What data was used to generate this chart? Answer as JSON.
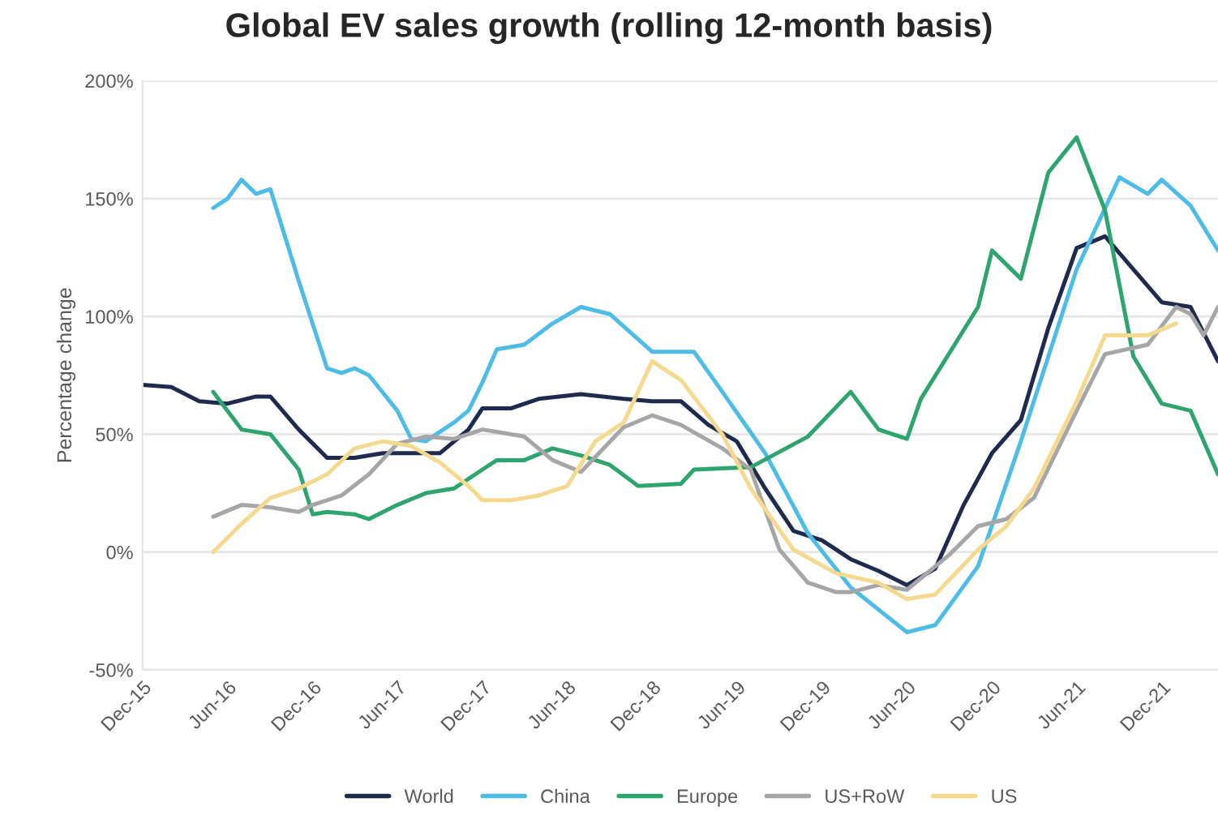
{
  "chart_data": {
    "type": "line",
    "title": "Global EV sales growth (rolling 12-month basis)",
    "ylabel": "Percentage change",
    "xlim": [
      "2015-12",
      "2022-04"
    ],
    "xticks": [
      {
        "value": "2015-12",
        "label": "Dec-15"
      },
      {
        "value": "2016-06",
        "label": "Jun-16"
      },
      {
        "value": "2016-12",
        "label": "Dec-16"
      },
      {
        "value": "2017-06",
        "label": "Jun-17"
      },
      {
        "value": "2017-12",
        "label": "Dec-17"
      },
      {
        "value": "2018-06",
        "label": "Jun-18"
      },
      {
        "value": "2018-12",
        "label": "Dec-18"
      },
      {
        "value": "2019-06",
        "label": "Jun-19"
      },
      {
        "value": "2019-12",
        "label": "Dec-19"
      },
      {
        "value": "2020-06",
        "label": "Jun-20"
      },
      {
        "value": "2020-12",
        "label": "Dec-20"
      },
      {
        "value": "2021-06",
        "label": "Jun-21"
      },
      {
        "value": "2021-12",
        "label": "Dec-21"
      }
    ],
    "ylim": [
      -50,
      200
    ],
    "yticks": [
      {
        "value": -50,
        "label": "-50%"
      },
      {
        "value": 0,
        "label": "0%"
      },
      {
        "value": 50,
        "label": "50%"
      },
      {
        "value": 100,
        "label": "100%"
      },
      {
        "value": 150,
        "label": "150%"
      },
      {
        "value": 200,
        "label": "200%"
      }
    ],
    "grid": "y",
    "legend": "bottom",
    "line_style": "solid",
    "series": [
      {
        "name": "World",
        "color": "#1f2a4f",
        "x": [
          "2015-12",
          "2016-02",
          "2016-04",
          "2016-06",
          "2016-08",
          "2016-09",
          "2016-11",
          "2017-01",
          "2017-03",
          "2017-05",
          "2017-07",
          "2017-09",
          "2017-11",
          "2017-12",
          "2018-02",
          "2018-04",
          "2018-07",
          "2018-10",
          "2018-12",
          "2019-02",
          "2019-04",
          "2019-06",
          "2019-08",
          "2019-10",
          "2019-12",
          "2020-02",
          "2020-04",
          "2020-06",
          "2020-08",
          "2020-10",
          "2020-12",
          "2021-02",
          "2021-04",
          "2021-06",
          "2021-08",
          "2021-10",
          "2021-12",
          "2022-02",
          "2022-04"
        ],
        "values": [
          71,
          70,
          64,
          63,
          66,
          66,
          52,
          40,
          40,
          42,
          42,
          42,
          52,
          61,
          61,
          65,
          67,
          65,
          64,
          64,
          54,
          47,
          27,
          9,
          5,
          -3,
          -8,
          -14,
          -7,
          20,
          42,
          56,
          95,
          129,
          134,
          120,
          106,
          104,
          81
        ]
      },
      {
        "name": "China",
        "color": "#4dbde8",
        "x": [
          "2016-05",
          "2016-06",
          "2016-07",
          "2016-08",
          "2016-09",
          "2016-11",
          "2017-01",
          "2017-02",
          "2017-03",
          "2017-04",
          "2017-06",
          "2017-07",
          "2017-08",
          "2017-10",
          "2017-11",
          "2017-12",
          "2018-01",
          "2018-03",
          "2018-05",
          "2018-07",
          "2018-09",
          "2018-12",
          "2019-03",
          "2019-05",
          "2019-08",
          "2019-11",
          "2020-02",
          "2020-06",
          "2020-08",
          "2020-11",
          "2021-02",
          "2021-06",
          "2021-09",
          "2021-11",
          "2021-12",
          "2022-02",
          "2022-04"
        ],
        "values": [
          146,
          150,
          158,
          152,
          154,
          115,
          78,
          76,
          78,
          75,
          60,
          48,
          47,
          55,
          60,
          72,
          86,
          88,
          97,
          104,
          101,
          85,
          85,
          68,
          42,
          8,
          -15,
          -34,
          -31,
          -6,
          47,
          120,
          159,
          152,
          158,
          147,
          128
        ]
      },
      {
        "name": "Europe",
        "color": "#2ea46f",
        "x": [
          "2016-05",
          "2016-07",
          "2016-09",
          "2016-11",
          "2016-12",
          "2017-01",
          "2017-03",
          "2017-04",
          "2017-06",
          "2017-08",
          "2017-10",
          "2017-12",
          "2018-01",
          "2018-03",
          "2018-05",
          "2018-07",
          "2018-09",
          "2018-11",
          "2019-02",
          "2019-03",
          "2019-07",
          "2019-11",
          "2020-02",
          "2020-04",
          "2020-06",
          "2020-07",
          "2020-11",
          "2020-12",
          "2021-02",
          "2021-04",
          "2021-06",
          "2021-08",
          "2021-10",
          "2021-12",
          "2022-02",
          "2022-04"
        ],
        "values": [
          68,
          52,
          50,
          35,
          16,
          17,
          16,
          14,
          20,
          25,
          27,
          35,
          39,
          39,
          44,
          41,
          37,
          28,
          29,
          35,
          36,
          49,
          68,
          52,
          48,
          65,
          104,
          128,
          116,
          161,
          176,
          145,
          83,
          63,
          60,
          33
        ]
      },
      {
        "name": "US+RoW",
        "color": "#a6a6a6",
        "x": [
          "2016-05",
          "2016-07",
          "2016-09",
          "2016-11",
          "2016-12",
          "2017-02",
          "2017-04",
          "2017-06",
          "2017-08",
          "2017-10",
          "2017-12",
          "2018-01",
          "2018-03",
          "2018-05",
          "2018-07",
          "2018-10",
          "2018-12",
          "2019-02",
          "2019-05",
          "2019-07",
          "2019-09",
          "2019-11",
          "2020-01",
          "2020-02",
          "2020-04",
          "2020-06",
          "2020-09",
          "2020-11",
          "2021-01",
          "2021-03",
          "2021-06",
          "2021-08",
          "2021-11",
          "2022-01",
          "2022-02",
          "2022-03",
          "2022-04"
        ],
        "values": [
          15,
          20,
          19,
          17,
          20,
          24,
          33,
          46,
          49,
          48,
          52,
          51,
          49,
          39,
          34,
          53,
          58,
          54,
          44,
          35,
          1,
          -13,
          -17,
          -17,
          -14,
          -16,
          -1,
          11,
          14,
          23,
          60,
          84,
          88,
          104,
          101,
          92,
          104
        ]
      },
      {
        "name": "US",
        "color": "#f5d98f",
        "x": [
          "2016-05",
          "2016-07",
          "2016-09",
          "2016-11",
          "2017-01",
          "2017-03",
          "2017-05",
          "2017-07",
          "2017-09",
          "2017-11",
          "2017-12",
          "2018-02",
          "2018-04",
          "2018-06",
          "2018-08",
          "2018-10",
          "2018-12",
          "2019-02",
          "2019-05",
          "2019-07",
          "2019-10",
          "2020-01",
          "2020-04",
          "2020-06",
          "2020-08",
          "2020-11",
          "2021-01",
          "2021-03",
          "2021-06",
          "2021-08",
          "2021-11",
          "2022-01"
        ],
        "values": [
          0,
          12,
          23,
          27,
          33,
          44,
          47,
          45,
          38,
          28,
          22,
          22,
          24,
          28,
          47,
          55,
          81,
          73,
          50,
          27,
          1,
          -9,
          -13,
          -20,
          -18,
          1,
          11,
          27,
          64,
          92,
          92,
          97
        ]
      }
    ]
  }
}
